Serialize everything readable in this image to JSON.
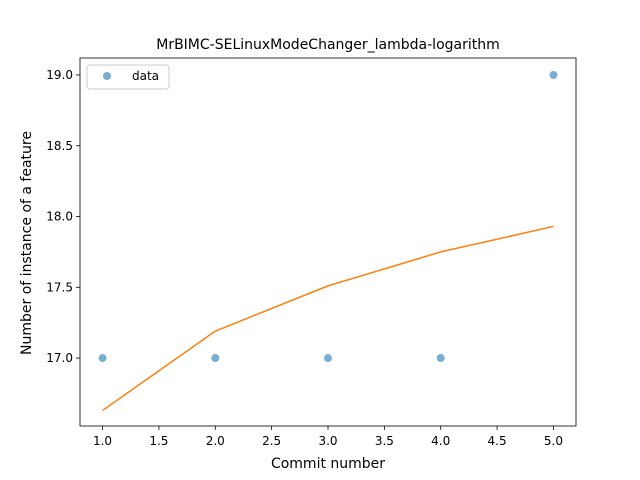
{
  "chart_data": {
    "type": "scatter",
    "title": "MrBIMC-SELinuxModeChanger_lambda-logarithm",
    "xlabel": "Commit number",
    "ylabel": "Number of instance of a feature",
    "xlim": [
      0.8,
      5.2
    ],
    "ylim": [
      16.52,
      19.12
    ],
    "x_ticks": [
      "1.0",
      "1.5",
      "2.0",
      "2.5",
      "3.0",
      "3.5",
      "4.0",
      "4.5",
      "5.0"
    ],
    "y_ticks": [
      "17.0",
      "17.5",
      "18.0",
      "18.5",
      "19.0"
    ],
    "grid": false,
    "legend_position": "top-left",
    "series": [
      {
        "name": "data",
        "kind": "scatter",
        "color": "#1f77b4",
        "x": [
          1,
          2,
          3,
          4,
          5
        ],
        "y": [
          17,
          17,
          17,
          17,
          19
        ]
      },
      {
        "kind": "line",
        "color": "#ff7f0e",
        "x": [
          1,
          2,
          3,
          4,
          5
        ],
        "y": [
          16.63,
          17.19,
          17.51,
          17.75,
          17.93
        ]
      }
    ]
  }
}
